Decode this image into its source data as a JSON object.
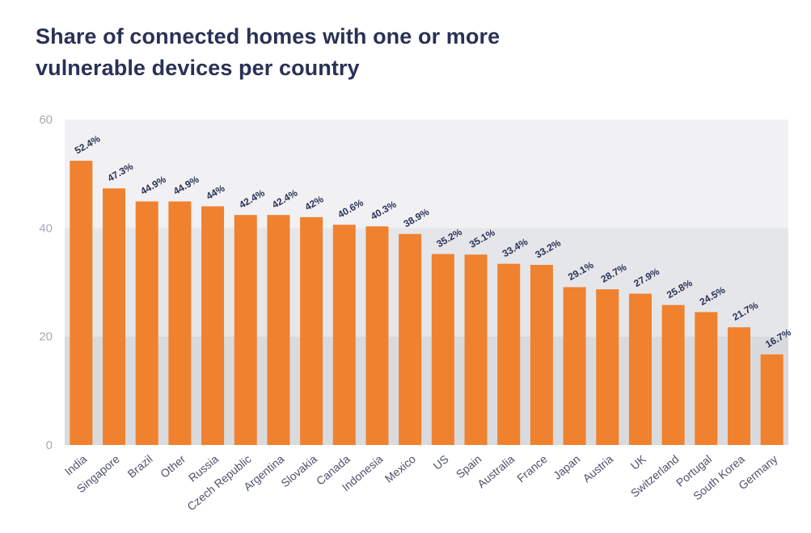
{
  "chart_data": {
    "type": "bar",
    "title": "Share of connected homes with one or more vulnerable devices per country",
    "xlabel": "",
    "ylabel": "",
    "ylim": [
      0,
      60
    ],
    "yticks": [
      0,
      20,
      40,
      60
    ],
    "grid": false,
    "legend": "none",
    "categories": [
      "India",
      "Singapore",
      "Brazil",
      "Other",
      "Russia",
      "Czech Republic",
      "Argentina",
      "Slovakia",
      "Canada",
      "Indonesia",
      "Mexico",
      "US",
      "Spain",
      "Australia",
      "France",
      "Japan",
      "Austria",
      "UK",
      "Switzerland",
      "Portugal",
      "South Korea",
      "Germany"
    ],
    "values": [
      52.4,
      47.3,
      44.9,
      44.9,
      44,
      42.4,
      42.4,
      42,
      40.6,
      40.3,
      38.9,
      35.2,
      35.1,
      33.4,
      33.2,
      29.1,
      28.7,
      27.9,
      25.8,
      24.5,
      21.7,
      16.7
    ],
    "data_labels": [
      "52.4%",
      "47.3%",
      "44.9%",
      "44.9%",
      "44%",
      "42.4%",
      "42.4%",
      "42%",
      "40.6%",
      "40.3%",
      "38.9%",
      "35.2%",
      "35.1%",
      "33.4%",
      "33.2%",
      "29.1%",
      "28.7%",
      "27.9%",
      "25.8%",
      "24.5%",
      "21.7%",
      "16.7%"
    ],
    "colors": {
      "bar": "#f0812e",
      "band_0_20": "#d9dadd",
      "band_20_40": "#e5e6e9",
      "band_40_60": "#f1f1f3",
      "title": "#2a3156",
      "tick_label": "#a7aab4",
      "category_label": "#4d5268",
      "value_label": "#2a3156"
    }
  }
}
